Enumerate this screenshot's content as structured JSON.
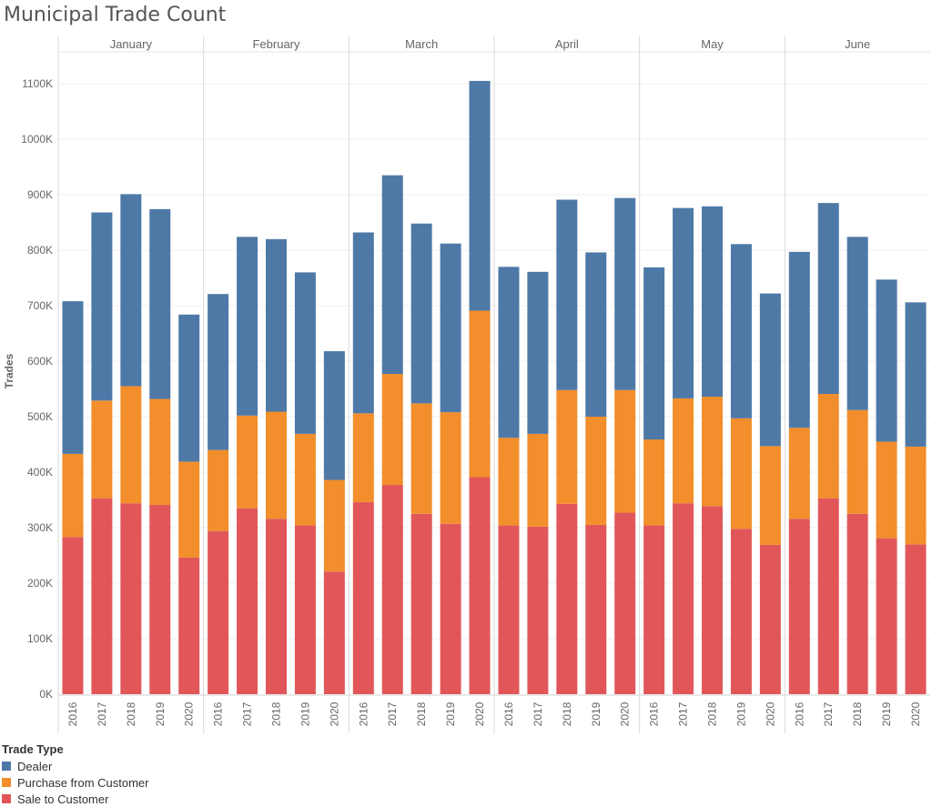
{
  "chart_data": {
    "type": "bar",
    "stacked": true,
    "title": "Municipal Trade Count",
    "ylabel": "Trades",
    "ylim": [
      0,
      1150000
    ],
    "yticks": [
      0,
      100000,
      200000,
      300000,
      400000,
      500000,
      600000,
      700000,
      800000,
      900000,
      1000000,
      1100000
    ],
    "ytick_labels": [
      "0K",
      "100K",
      "200K",
      "300K",
      "400K",
      "500K",
      "600K",
      "700K",
      "800K",
      "900K",
      "1000K",
      "1100K"
    ],
    "panels": [
      "January",
      "February",
      "March",
      "April",
      "May",
      "June"
    ],
    "categories": [
      "2016",
      "2017",
      "2018",
      "2019",
      "2020"
    ],
    "legend_title": "Trade Type",
    "series": [
      {
        "name": "Sale to Customer",
        "color": "#e15759",
        "values": [
          [
            283000,
            353000,
            344000,
            341000,
            246000
          ],
          [
            294000,
            335000,
            316000,
            304000,
            221000
          ],
          [
            346000,
            377000,
            325000,
            307000,
            391000
          ],
          [
            304000,
            302000,
            343000,
            305000,
            327000
          ],
          [
            304000,
            344000,
            339000,
            298000,
            269000
          ],
          [
            316000,
            353000,
            325000,
            281000,
            270000
          ]
        ]
      },
      {
        "name": "Purchase from Customer",
        "color": "#f28e2b",
        "values": [
          [
            150000,
            176000,
            211000,
            191000,
            173000
          ],
          [
            146000,
            167000,
            193000,
            165000,
            165000
          ],
          [
            160000,
            200000,
            199000,
            201000,
            300000
          ],
          [
            158000,
            167000,
            205000,
            195000,
            221000
          ],
          [
            155000,
            189000,
            197000,
            199000,
            178000
          ],
          [
            164000,
            188000,
            187000,
            174000,
            176000
          ]
        ]
      },
      {
        "name": "Dealer",
        "color": "#4e79a7",
        "values": [
          [
            275000,
            339000,
            346000,
            342000,
            265000
          ],
          [
            281000,
            322000,
            311000,
            291000,
            232000
          ],
          [
            326000,
            358000,
            324000,
            304000,
            414000
          ],
          [
            308000,
            292000,
            343000,
            296000,
            346000
          ],
          [
            310000,
            343000,
            343000,
            314000,
            275000
          ],
          [
            317000,
            344000,
            312000,
            292000,
            260000
          ]
        ]
      }
    ],
    "legend_order": [
      "Dealer",
      "Purchase from Customer",
      "Sale to Customer"
    ],
    "legend_position": "bottom-left",
    "grid": true
  }
}
